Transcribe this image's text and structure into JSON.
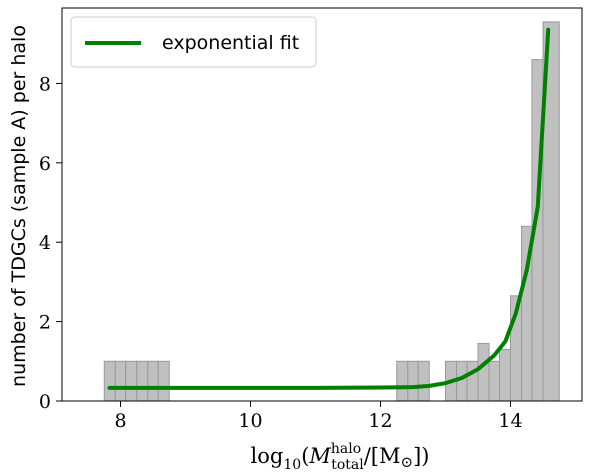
{
  "chart_data": {
    "type": "bar",
    "title": "",
    "xlabel": "log10(M_total^halo/[M⊙])",
    "xlabel_parts": {
      "func": "log",
      "sub": "10",
      "open": "(",
      "m": "M",
      "sup": "halo",
      "msub": "total",
      "rest": "/[M",
      "sun": "⊙",
      "close": "])"
    },
    "ylabel": "number of TDGCs (sample A) per halo",
    "xlim": [
      7.1,
      15.1
    ],
    "ylim": [
      0,
      9.9
    ],
    "xticks": [
      8,
      10,
      12,
      14
    ],
    "yticks": [
      0,
      2,
      4,
      6,
      8
    ],
    "grid": false,
    "legend_position": "top-left",
    "bar_color": "#c0c0c0",
    "bar_divider_color": "#999999",
    "histogram": [
      {
        "x0": 7.75,
        "x1": 7.92,
        "value": 1.0
      },
      {
        "x0": 7.92,
        "x1": 8.08,
        "value": 1.0
      },
      {
        "x0": 8.08,
        "x1": 8.25,
        "value": 1.0
      },
      {
        "x0": 8.25,
        "x1": 8.42,
        "value": 1.0
      },
      {
        "x0": 8.42,
        "x1": 8.58,
        "value": 1.0
      },
      {
        "x0": 8.58,
        "x1": 8.75,
        "value": 1.0
      },
      {
        "x0": 12.25,
        "x1": 12.42,
        "value": 1.0
      },
      {
        "x0": 12.42,
        "x1": 12.58,
        "value": 1.0
      },
      {
        "x0": 12.58,
        "x1": 12.75,
        "value": 1.0
      },
      {
        "x0": 13.0,
        "x1": 13.17,
        "value": 1.0
      },
      {
        "x0": 13.17,
        "x1": 13.33,
        "value": 1.0
      },
      {
        "x0": 13.33,
        "x1": 13.5,
        "value": 1.0
      },
      {
        "x0": 13.5,
        "x1": 13.67,
        "value": 1.45
      },
      {
        "x0": 13.67,
        "x1": 13.83,
        "value": 1.0
      },
      {
        "x0": 13.83,
        "x1": 14.0,
        "value": 1.3
      },
      {
        "x0": 14.0,
        "x1": 14.17,
        "value": 2.65
      },
      {
        "x0": 14.17,
        "x1": 14.33,
        "value": 4.4
      },
      {
        "x0": 14.33,
        "x1": 14.5,
        "value": 8.6
      },
      {
        "x0": 14.5,
        "x1": 14.75,
        "value": 9.55
      }
    ],
    "series": [
      {
        "name": "exponential fit",
        "color": "#008000",
        "x": [
          7.83,
          9.0,
          10.0,
          11.0,
          12.0,
          12.5,
          12.75,
          13.0,
          13.25,
          13.5,
          13.75,
          13.92,
          14.08,
          14.25,
          14.42,
          14.58
        ],
        "y": [
          0.33,
          0.33,
          0.33,
          0.33,
          0.34,
          0.35,
          0.38,
          0.45,
          0.58,
          0.8,
          1.15,
          1.5,
          2.2,
          3.3,
          4.9,
          9.35
        ]
      }
    ]
  }
}
